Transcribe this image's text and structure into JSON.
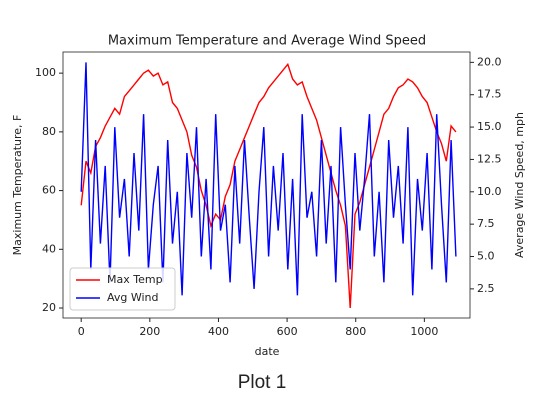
{
  "chart_data": {
    "type": "line",
    "title": "Maximum Temperature and Average Wind Speed",
    "xlabel": "date",
    "ylabel": "Maximum Temperature, F",
    "y2label": "Average Wind Speed, mph",
    "caption": "Plot 1",
    "legend": "lower left",
    "x": [
      0,
      14,
      28,
      42,
      56,
      70,
      84,
      98,
      112,
      126,
      140,
      154,
      168,
      182,
      196,
      210,
      224,
      238,
      252,
      266,
      280,
      294,
      308,
      322,
      336,
      350,
      364,
      378,
      392,
      406,
      420,
      434,
      448,
      462,
      476,
      490,
      504,
      518,
      532,
      546,
      560,
      574,
      588,
      602,
      616,
      630,
      644,
      658,
      672,
      686,
      700,
      714,
      728,
      742,
      756,
      770,
      784,
      798,
      812,
      826,
      840,
      854,
      868,
      882,
      896,
      910,
      924,
      938,
      952,
      966,
      980,
      994,
      1008,
      1022,
      1036,
      1050,
      1064,
      1078,
      1092
    ],
    "series": [
      {
        "name": "Max Temp",
        "color": "#ff0000",
        "values": [
          55,
          70,
          66,
          75,
          78,
          82,
          85,
          88,
          86,
          92,
          94,
          96,
          98,
          100,
          101,
          99,
          100,
          96,
          97,
          90,
          88,
          84,
          80,
          72,
          68,
          60,
          55,
          48,
          52,
          50,
          58,
          62,
          70,
          74,
          78,
          82,
          86,
          90,
          92,
          95,
          97,
          99,
          101,
          103,
          98,
          96,
          97,
          92,
          88,
          84,
          78,
          72,
          66,
          60,
          55,
          48,
          20,
          52,
          56,
          62,
          68,
          74,
          80,
          86,
          88,
          92,
          95,
          96,
          98,
          97,
          95,
          92,
          90,
          85,
          80,
          76,
          70,
          82,
          80
        ]
      },
      {
        "name": "Avg Wind",
        "color": "#0000ff",
        "axis": "y2",
        "values": [
          10,
          20,
          4,
          14,
          6,
          12,
          3,
          15,
          8,
          11,
          5,
          13,
          7,
          16,
          4,
          9,
          12,
          3,
          14,
          6,
          10,
          2,
          13,
          8,
          15,
          5,
          11,
          4,
          16,
          7,
          9,
          3,
          12,
          6,
          14,
          8,
          2.5,
          10,
          15,
          5,
          12,
          7,
          13,
          4,
          11,
          2,
          16,
          8,
          10,
          5,
          14,
          6,
          12,
          3,
          15,
          9,
          4,
          13,
          7,
          11,
          16,
          5,
          10,
          3,
          14,
          8,
          12,
          6,
          15,
          2,
          11,
          7,
          13,
          4,
          16,
          9,
          3,
          14,
          5
        ]
      }
    ],
    "xlim": [
      -53,
      1133
    ],
    "xticks": [
      0,
      200,
      400,
      600,
      800,
      1000
    ],
    "ylim": [
      16.6,
      107.2
    ],
    "yticks": [
      20,
      40,
      60,
      80,
      100
    ],
    "y2lim": [
      0.25,
      20.8
    ],
    "y2ticks": [
      {
        "value": 2.5,
        "label": "2.5"
      },
      {
        "value": 5,
        "label": "5.0"
      },
      {
        "value": 7.5,
        "label": "7.5"
      },
      {
        "value": 10,
        "label": "10.0"
      },
      {
        "value": 12.5,
        "label": "12.5"
      },
      {
        "value": 15,
        "label": "15.0"
      },
      {
        "value": 17.5,
        "label": "17.5"
      },
      {
        "value": 20,
        "label": "20.0"
      }
    ]
  }
}
